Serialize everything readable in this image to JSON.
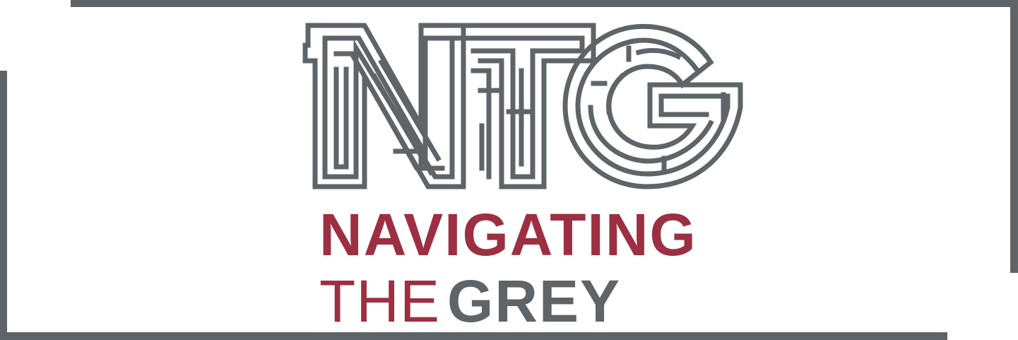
{
  "logo": {
    "monogram": "NTG",
    "line_one": "NAVIGATING",
    "line_two_a": "THE",
    "line_two_b": "GREY"
  },
  "colors": {
    "maroon": "#9c2f41",
    "grey": "#5f6468",
    "background": "#ffffff"
  }
}
